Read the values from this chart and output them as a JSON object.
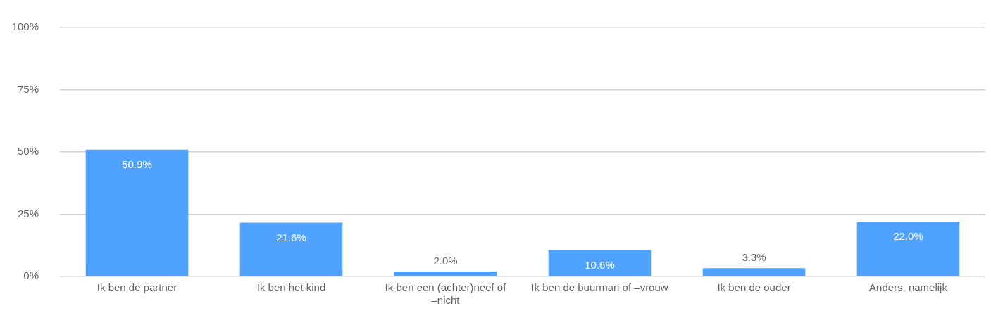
{
  "chart_data": {
    "type": "bar",
    "categories": [
      "Ik ben de partner",
      "Ik ben het kind",
      "Ik ben een (achter)neef of –nicht",
      "Ik ben de buurman of –vrouw",
      "Ik ben de ouder",
      "Anders, namelijk"
    ],
    "values": [
      50.9,
      21.6,
      2.0,
      10.6,
      3.3,
      22.0
    ],
    "value_labels": [
      "50.9%",
      "21.6%",
      "2.0%",
      "10.6%",
      "3.3%",
      "22.0%"
    ],
    "color": "#4fa3ff",
    "ylim": [
      0,
      100
    ],
    "yticks": [
      {
        "value": 0,
        "label": "0%"
      },
      {
        "value": 25,
        "label": "25%"
      },
      {
        "value": 50,
        "label": "50%"
      },
      {
        "value": 75,
        "label": "75%"
      },
      {
        "value": 100,
        "label": "100%"
      }
    ],
    "grid": "y"
  }
}
